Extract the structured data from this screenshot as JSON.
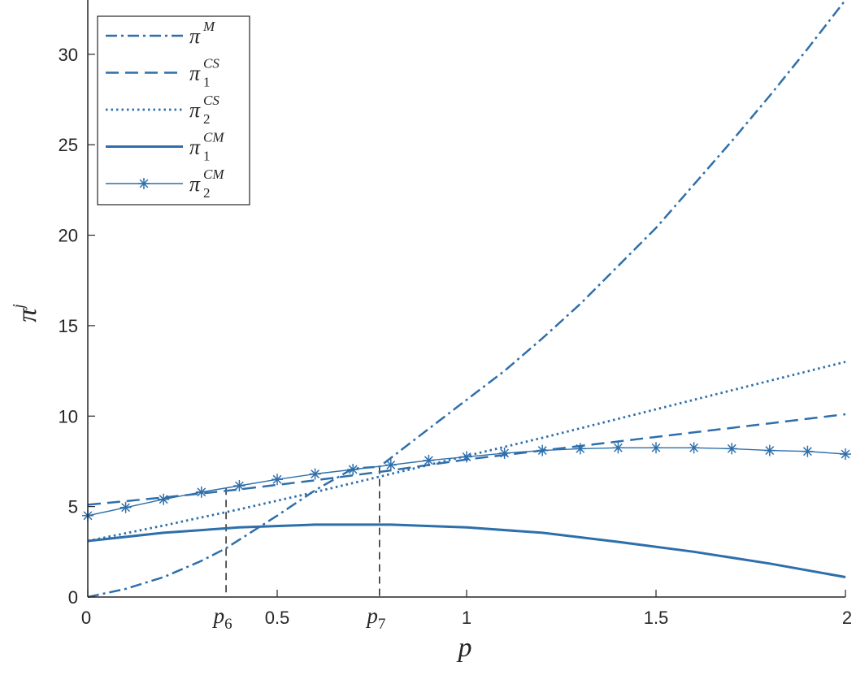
{
  "chart_data": {
    "type": "line",
    "xlabel": "p",
    "ylabel_base": "π",
    "ylabel_sup": "j",
    "xlim": [
      0,
      2
    ],
    "ylim": [
      0,
      33
    ],
    "xticks": [
      0,
      0.5,
      1,
      1.5,
      2
    ],
    "xtick_labels": [
      "0",
      "0.5",
      "1",
      "1.5",
      "2"
    ],
    "yticks": [
      0,
      5,
      10,
      15,
      20,
      25,
      30
    ],
    "ytick_labels": [
      "0",
      "5",
      "10",
      "15",
      "20",
      "25",
      "30"
    ],
    "grid": false,
    "legend_position": "top-left",
    "color": "#2e6fab",
    "series": [
      {
        "key": "pi-m",
        "name_base": "π",
        "name_sup": "M",
        "name_sub": "",
        "style": "dashdot",
        "x": [
          0,
          0.1,
          0.2,
          0.3,
          0.365,
          0.5,
          0.6,
          0.7,
          0.77,
          0.9,
          1.0,
          1.1,
          1.2,
          1.3,
          1.4,
          1.5,
          1.6,
          1.7,
          1.8,
          1.9,
          2.0
        ],
        "y": [
          0,
          0.45,
          1.1,
          2.0,
          2.7,
          4.5,
          5.9,
          7.1,
          7.2,
          9.3,
          10.9,
          12.5,
          14.3,
          16.2,
          18.3,
          20.4,
          22.8,
          25.2,
          27.7,
          30.3,
          33.0
        ]
      },
      {
        "key": "pi1-cs",
        "name_base": "π",
        "name_sup": "CS",
        "name_sub": "1",
        "style": "dashed",
        "x": [
          0,
          0.2,
          0.4,
          0.6,
          0.8,
          1.0,
          1.2,
          1.4,
          1.6,
          1.8,
          2.0
        ],
        "y": [
          5.1,
          5.5,
          5.95,
          6.45,
          7.0,
          7.6,
          8.1,
          8.6,
          9.1,
          9.6,
          10.1
        ]
      },
      {
        "key": "pi2-cs",
        "name_base": "π",
        "name_sup": "CS",
        "name_sub": "2",
        "style": "dotted",
        "x": [
          0,
          0.2,
          0.4,
          0.6,
          0.8,
          1.0,
          1.2,
          1.4,
          1.6,
          1.8,
          2.0
        ],
        "y": [
          3.1,
          3.95,
          4.85,
          5.8,
          6.8,
          7.8,
          8.8,
          9.85,
          10.9,
          11.95,
          13.0
        ]
      },
      {
        "key": "pi1-cm",
        "name_base": "π",
        "name_sup": "CM",
        "name_sub": "1",
        "style": "solid",
        "x": [
          0,
          0.2,
          0.4,
          0.6,
          0.8,
          1.0,
          1.2,
          1.4,
          1.6,
          1.8,
          2.0
        ],
        "y": [
          3.1,
          3.55,
          3.85,
          4.0,
          4.0,
          3.85,
          3.55,
          3.05,
          2.5,
          1.85,
          1.1
        ]
      },
      {
        "key": "pi2-cm",
        "name_base": "π",
        "name_sup": "CM",
        "name_sub": "2",
        "style": "solid-star",
        "x": [
          0,
          0.1,
          0.2,
          0.3,
          0.4,
          0.5,
          0.6,
          0.7,
          0.8,
          0.9,
          1.0,
          1.1,
          1.2,
          1.3,
          1.4,
          1.5,
          1.6,
          1.7,
          1.8,
          1.9,
          2.0
        ],
        "y": [
          4.5,
          4.95,
          5.4,
          5.8,
          6.15,
          6.5,
          6.8,
          7.05,
          7.3,
          7.55,
          7.75,
          7.95,
          8.1,
          8.2,
          8.25,
          8.25,
          8.25,
          8.2,
          8.1,
          8.05,
          7.9
        ]
      }
    ],
    "markers": [
      {
        "key": "p6",
        "label_base": "p",
        "label_sub": "6",
        "x": 0.365,
        "y": 6.05
      },
      {
        "key": "p7",
        "label_base": "p",
        "label_sub": "7",
        "x": 0.77,
        "y": 7.2
      }
    ]
  }
}
